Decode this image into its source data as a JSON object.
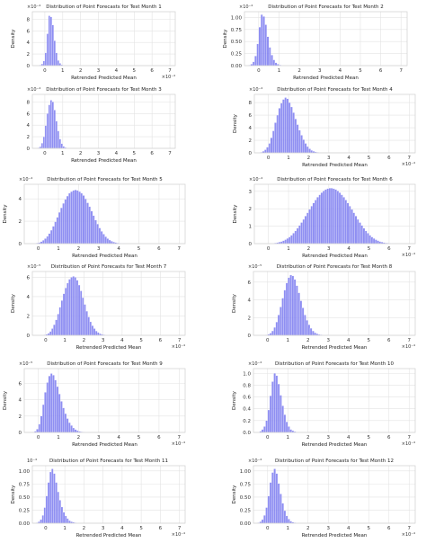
{
  "chart_data": [
    {
      "type": "bar",
      "title": "Distribution of Point Forecasts for Test Month 1",
      "xlabel": "Retrended Predicted Mean",
      "ylabel": "Density",
      "x_tick_labels": [
        "0",
        "1",
        "2",
        "3",
        "4",
        "5",
        "6",
        "7"
      ],
      "x_ticks": [
        0,
        1,
        2,
        3,
        4,
        5,
        6,
        7
      ],
      "x_exponent": "×10⁻⁴",
      "xlim": [
        -0.7,
        7.3
      ],
      "y_tick_labels": [
        "0",
        "2",
        "4",
        "6",
        "8"
      ],
      "y_ticks": [
        0,
        2,
        4,
        6,
        8
      ],
      "y_exponent": "×10⁻⁴",
      "ylim": [
        0,
        9.3
      ],
      "x": [
        -0.25,
        -0.15,
        -0.05,
        0.05,
        0.15,
        0.25,
        0.35,
        0.45,
        0.55,
        0.65,
        0.75,
        0.85,
        0.95,
        1.05
      ],
      "values": [
        0.1,
        0.3,
        0.8,
        2.2,
        5.5,
        8.6,
        8.4,
        7.0,
        4.3,
        2.2,
        0.9,
        0.4,
        0.15,
        0.05
      ],
      "bar_color": "#7b7bf0",
      "grid": true
    },
    {
      "type": "bar",
      "title": "Distribution of Point Forecasts for Test Month 2",
      "xlabel": "Retrended Predicted Mean",
      "ylabel": "Density",
      "x_tick_labels": [
        "0",
        "1",
        "2",
        "3",
        "4",
        "5",
        "6",
        "7"
      ],
      "x_ticks": [
        0,
        1,
        2,
        3,
        4,
        5,
        6,
        7
      ],
      "x_exponent": "",
      "xlim": [
        -0.7,
        7.3
      ],
      "y_tick_labels": [
        "0.00",
        "0.25",
        "0.50",
        "0.75",
        "1.00"
      ],
      "y_ticks": [
        0,
        0.25,
        0.5,
        0.75,
        1.0
      ],
      "y_exponent": "×10⁻⁴",
      "ylim": [
        0,
        1.12
      ],
      "x": [
        -0.45,
        -0.35,
        -0.25,
        -0.15,
        -0.05,
        0.05,
        0.15,
        0.25,
        0.35,
        0.45,
        0.55,
        0.65,
        0.75,
        0.85,
        0.95,
        1.05,
        1.15
      ],
      "values": [
        0.01,
        0.03,
        0.08,
        0.2,
        0.45,
        0.8,
        1.06,
        1.02,
        0.85,
        0.6,
        0.38,
        0.22,
        0.12,
        0.06,
        0.03,
        0.015,
        0.005
      ],
      "bar_color": "#7b7bf0",
      "grid": true
    },
    {
      "type": "bar",
      "title": "Distribution of Point Forecasts for Test Month 3",
      "xlabel": "Retrended Predicted Mean",
      "ylabel": "",
      "x_tick_labels": [
        "0",
        "1",
        "2",
        "3",
        "4",
        "5",
        "6",
        "7"
      ],
      "x_ticks": [
        0,
        1,
        2,
        3,
        4,
        5,
        6,
        7
      ],
      "x_exponent": "",
      "xlim": [
        -0.7,
        7.3
      ],
      "y_tick_labels": [
        "0",
        "2",
        "4",
        "6",
        "8"
      ],
      "y_ticks": [
        0,
        2,
        4,
        6,
        8
      ],
      "y_exponent": "×10⁻⁴",
      "ylim": [
        0,
        9.3
      ],
      "x": [
        -0.35,
        -0.25,
        -0.15,
        -0.05,
        0.05,
        0.15,
        0.25,
        0.35,
        0.45,
        0.55,
        0.65,
        0.75,
        0.85,
        0.95,
        1.05,
        1.15,
        1.25
      ],
      "values": [
        0.1,
        0.3,
        0.9,
        2.0,
        3.9,
        6.0,
        7.5,
        8.3,
        8.0,
        6.6,
        4.7,
        3.0,
        1.6,
        0.8,
        0.35,
        0.15,
        0.05
      ],
      "bar_color": "#7b7bf0",
      "grid": true
    },
    {
      "type": "bar",
      "title": "Distribution of Point Forecasts for Test Month 4",
      "xlabel": "Retrended Predicted Mean",
      "ylabel": "Density",
      "x_tick_labels": [
        "0",
        "1",
        "2",
        "3",
        "4",
        "5",
        "6",
        "7"
      ],
      "x_ticks": [
        0,
        1,
        2,
        3,
        4,
        5,
        6,
        7
      ],
      "x_exponent": "×10⁻⁴",
      "xlim": [
        -0.7,
        7.3
      ],
      "y_tick_labels": [
        "0",
        "2",
        "4",
        "6",
        "8"
      ],
      "y_ticks": [
        0,
        2,
        4,
        6,
        8
      ],
      "y_exponent": "×10⁻⁴",
      "ylim": [
        0,
        9.3
      ],
      "x": [
        -0.45,
        -0.35,
        -0.25,
        -0.15,
        -0.05,
        0.05,
        0.15,
        0.25,
        0.35,
        0.45,
        0.55,
        0.65,
        0.75,
        0.85,
        0.95,
        1.05,
        1.15,
        1.25,
        1.35,
        1.45,
        1.55,
        1.65,
        1.75,
        1.85,
        1.95,
        2.05,
        2.15,
        2.25,
        2.35,
        2.45,
        2.55
      ],
      "values": [
        0.05,
        0.1,
        0.25,
        0.5,
        0.9,
        1.5,
        2.4,
        3.5,
        4.8,
        6.0,
        7.1,
        7.9,
        8.5,
        8.8,
        8.6,
        8.0,
        7.3,
        6.4,
        5.4,
        4.5,
        3.6,
        2.8,
        2.1,
        1.5,
        1.0,
        0.65,
        0.4,
        0.25,
        0.15,
        0.08,
        0.04
      ],
      "bar_color": "#7b7bf0",
      "grid": true
    },
    {
      "type": "bar",
      "title": "Distribution of Point Forecasts for Test Month 5",
      "xlabel": "Retrended Predicted Mean",
      "ylabel": "Density",
      "x_tick_labels": [
        "0",
        "1",
        "2",
        "3",
        "4",
        "5",
        "6",
        "7"
      ],
      "x_ticks": [
        0,
        1,
        2,
        3,
        4,
        5,
        6,
        7
      ],
      "x_exponent": "",
      "xlim": [
        -0.7,
        7.3
      ],
      "y_tick_labels": [
        "0",
        "2",
        "4"
      ],
      "y_ticks": [
        0,
        2,
        4
      ],
      "y_exponent": "×10⁻⁴",
      "ylim": [
        0,
        5.3
      ],
      "x": [
        -0.15,
        -0.05,
        0.05,
        0.15,
        0.25,
        0.35,
        0.45,
        0.55,
        0.65,
        0.75,
        0.85,
        0.95,
        1.05,
        1.15,
        1.25,
        1.35,
        1.45,
        1.55,
        1.65,
        1.75,
        1.85,
        1.95,
        2.05,
        2.15,
        2.25,
        2.35,
        2.45,
        2.55,
        2.65,
        2.75,
        2.85,
        2.95,
        3.05,
        3.15,
        3.25,
        3.35,
        3.45,
        3.55,
        3.65,
        3.75,
        3.85,
        3.95,
        4.05,
        4.15,
        4.25
      ],
      "values": [
        0.03,
        0.06,
        0.1,
        0.18,
        0.3,
        0.45,
        0.65,
        0.9,
        1.2,
        1.55,
        1.95,
        2.35,
        2.8,
        3.2,
        3.6,
        3.95,
        4.25,
        4.5,
        4.65,
        4.75,
        4.8,
        4.75,
        4.65,
        4.5,
        4.3,
        4.0,
        3.65,
        3.3,
        2.9,
        2.5,
        2.1,
        1.75,
        1.4,
        1.1,
        0.85,
        0.62,
        0.45,
        0.32,
        0.22,
        0.15,
        0.1,
        0.06,
        0.04,
        0.02,
        0.01
      ],
      "bar_color": "#7b7bf0",
      "grid": true
    },
    {
      "type": "bar",
      "title": "Distribution of Point Forecasts for Test Month 6",
      "xlabel": "Retrended Predicted Mean",
      "ylabel": "Density",
      "x_tick_labels": [
        "0",
        "1",
        "2",
        "3",
        "4",
        "5",
        "6",
        "7"
      ],
      "x_ticks": [
        0,
        1,
        2,
        3,
        4,
        5,
        6,
        7
      ],
      "x_exponent": "×10⁻⁴",
      "xlim": [
        -0.7,
        7.3
      ],
      "y_tick_labels": [
        "0",
        "1",
        "2",
        "3"
      ],
      "y_ticks": [
        0,
        1,
        2,
        3
      ],
      "y_exponent": "×10⁻⁴",
      "ylim": [
        0,
        3.4
      ],
      "x": [
        0.25,
        0.35,
        0.45,
        0.55,
        0.65,
        0.75,
        0.85,
        0.95,
        1.05,
        1.15,
        1.25,
        1.35,
        1.45,
        1.55,
        1.65,
        1.75,
        1.85,
        1.95,
        2.05,
        2.15,
        2.25,
        2.35,
        2.45,
        2.55,
        2.65,
        2.75,
        2.85,
        2.95,
        3.05,
        3.15,
        3.25,
        3.35,
        3.45,
        3.55,
        3.65,
        3.75,
        3.85,
        3.95,
        4.05,
        4.15,
        4.25,
        4.35,
        4.45,
        4.55,
        4.65,
        4.75,
        4.85,
        4.95,
        5.05,
        5.15,
        5.25,
        5.35,
        5.45,
        5.55,
        5.65,
        5.75,
        5.85,
        5.95,
        6.05,
        6.15,
        6.25
      ],
      "values": [
        0.02,
        0.04,
        0.06,
        0.09,
        0.12,
        0.17,
        0.23,
        0.3,
        0.38,
        0.48,
        0.6,
        0.73,
        0.88,
        1.04,
        1.21,
        1.39,
        1.58,
        1.77,
        1.96,
        2.15,
        2.33,
        2.5,
        2.66,
        2.8,
        2.92,
        3.02,
        3.1,
        3.15,
        3.18,
        3.18,
        3.15,
        3.1,
        3.02,
        2.92,
        2.8,
        2.66,
        2.5,
        2.33,
        2.15,
        1.96,
        1.77,
        1.58,
        1.39,
        1.21,
        1.04,
        0.88,
        0.73,
        0.6,
        0.48,
        0.38,
        0.3,
        0.23,
        0.17,
        0.12,
        0.09,
        0.06,
        0.04,
        0.03,
        0.02,
        0.01,
        0.01
      ],
      "bar_color": "#7b7bf0",
      "grid": true
    },
    {
      "type": "bar",
      "title": "Distribution of Point Forecasts for Test Month 7",
      "xlabel": "Retrended Predicted Mean",
      "ylabel": "Density",
      "x_tick_labels": [
        "0",
        "1",
        "2",
        "3",
        "4",
        "5",
        "6",
        "7"
      ],
      "x_ticks": [
        0,
        1,
        2,
        3,
        4,
        5,
        6,
        7
      ],
      "x_exponent": "×10⁻⁴",
      "xlim": [
        -0.7,
        7.3
      ],
      "y_tick_labels": [
        "0",
        "2",
        "4",
        "6"
      ],
      "y_ticks": [
        0,
        2,
        4,
        6
      ],
      "y_exponent": "×10⁻⁵",
      "ylim": [
        0,
        6.6
      ],
      "x": [
        -0.05,
        0.05,
        0.15,
        0.25,
        0.35,
        0.45,
        0.55,
        0.65,
        0.75,
        0.85,
        0.95,
        1.05,
        1.15,
        1.25,
        1.35,
        1.45,
        1.55,
        1.65,
        1.75,
        1.85,
        1.95,
        2.05,
        2.15,
        2.25,
        2.35,
        2.45,
        2.55,
        2.65,
        2.75,
        2.85,
        2.95,
        3.05,
        3.15,
        3.25,
        3.35
      ],
      "values": [
        0.05,
        0.1,
        0.2,
        0.4,
        0.7,
        1.1,
        1.6,
        2.2,
        2.9,
        3.6,
        4.3,
        4.9,
        5.4,
        5.8,
        6.0,
        6.1,
        6.0,
        5.7,
        5.2,
        4.6,
        3.9,
        3.2,
        2.5,
        1.9,
        1.4,
        1.0,
        0.7,
        0.45,
        0.3,
        0.18,
        0.1,
        0.06,
        0.03,
        0.02,
        0.01
      ],
      "bar_color": "#7b7bf0",
      "grid": true
    },
    {
      "type": "bar",
      "title": "Distribution of Point Forecasts for Test Month 8",
      "xlabel": "Retrended Predicted Mean",
      "ylabel": "Density",
      "x_tick_labels": [
        "0",
        "1",
        "2",
        "3",
        "4",
        "5",
        "6",
        "7"
      ],
      "x_ticks": [
        0,
        1,
        2,
        3,
        4,
        5,
        6,
        7
      ],
      "x_exponent": "×10⁻⁴",
      "xlim": [
        -0.7,
        7.3
      ],
      "y_tick_labels": [
        "0",
        "2",
        "4",
        "6"
      ],
      "y_ticks": [
        0,
        2,
        4,
        6
      ],
      "y_exponent": "×10⁻⁵",
      "ylim": [
        0,
        7.2
      ],
      "x": [
        -0.05,
        0.05,
        0.15,
        0.25,
        0.35,
        0.45,
        0.55,
        0.65,
        0.75,
        0.85,
        0.95,
        1.05,
        1.15,
        1.25,
        1.35,
        1.45,
        1.55,
        1.65,
        1.75,
        1.85,
        1.95,
        2.05,
        2.15,
        2.25,
        2.35,
        2.45,
        2.55,
        2.65,
        2.75,
        2.85,
        2.95,
        3.05
      ],
      "values": [
        0.05,
        0.12,
        0.25,
        0.5,
        0.9,
        1.5,
        2.3,
        3.2,
        4.2,
        5.1,
        5.9,
        6.5,
        6.8,
        6.7,
        6.3,
        5.6,
        4.8,
        3.9,
        3.1,
        2.3,
        1.7,
        1.2,
        0.8,
        0.5,
        0.3,
        0.18,
        0.1,
        0.06,
        0.03,
        0.02,
        0.01,
        0.01
      ],
      "bar_color": "#7b7bf0",
      "grid": true
    },
    {
      "type": "bar",
      "title": "Distribution of Point Forecasts for Test Month 9",
      "xlabel": "Retrended Predicted Mean",
      "ylabel": "Density",
      "x_tick_labels": [
        "0",
        "1",
        "2",
        "3",
        "4",
        "5",
        "6",
        "7"
      ],
      "x_ticks": [
        0,
        1,
        2,
        3,
        4,
        5,
        6,
        7
      ],
      "x_exponent": "×10⁻⁴",
      "xlim": [
        -0.7,
        7.3
      ],
      "y_tick_labels": [
        "0",
        "2",
        "4",
        "6"
      ],
      "y_ticks": [
        0,
        2,
        4,
        6
      ],
      "y_exponent": "×10⁻⁵",
      "ylim": [
        0,
        7.8
      ],
      "x": [
        -0.25,
        -0.15,
        -0.05,
        0.05,
        0.15,
        0.25,
        0.35,
        0.45,
        0.55,
        0.65,
        0.75,
        0.85,
        0.95,
        1.05,
        1.15,
        1.25,
        1.35,
        1.45,
        1.55,
        1.65,
        1.75,
        1.85,
        1.95,
        2.05,
        2.15,
        2.25,
        2.35,
        2.45,
        2.55
      ],
      "values": [
        0.05,
        0.15,
        0.4,
        1.0,
        2.0,
        3.4,
        4.9,
        6.1,
        6.9,
        7.2,
        7.0,
        6.4,
        5.6,
        4.7,
        3.8,
        3.0,
        2.3,
        1.7,
        1.2,
        0.85,
        0.55,
        0.35,
        0.22,
        0.13,
        0.08,
        0.05,
        0.03,
        0.02,
        0.01
      ],
      "bar_color": "#7b7bf0",
      "grid": true
    },
    {
      "type": "bar",
      "title": "Distribution of Point Forecasts for Test Month 10",
      "xlabel": "Retrended Predicted Mean",
      "ylabel": "Density",
      "x_tick_labels": [
        "0",
        "1",
        "2",
        "3",
        "4",
        "5",
        "6",
        "7"
      ],
      "x_ticks": [
        0,
        1,
        2,
        3,
        4,
        5,
        6,
        7
      ],
      "x_exponent": "×10⁻⁴",
      "xlim": [
        -0.7,
        7.3
      ],
      "y_tick_labels": [
        "0.0",
        "0.2",
        "0.4",
        "0.6",
        "0.8",
        "1.0"
      ],
      "y_ticks": [
        0,
        0.2,
        0.4,
        0.6,
        0.8,
        1.0
      ],
      "y_exponent": "×10⁻⁴",
      "ylim": [
        0,
        1.08
      ],
      "x": [
        -0.35,
        -0.25,
        -0.15,
        -0.05,
        0.05,
        0.15,
        0.25,
        0.35,
        0.45,
        0.55,
        0.65,
        0.75,
        0.85,
        0.95,
        1.05,
        1.15,
        1.25,
        1.35,
        1.45
      ],
      "values": [
        0.02,
        0.05,
        0.1,
        0.2,
        0.38,
        0.62,
        0.86,
        1.0,
        0.96,
        0.82,
        0.63,
        0.45,
        0.3,
        0.18,
        0.1,
        0.05,
        0.03,
        0.015,
        0.005
      ],
      "bar_color": "#7b7bf0",
      "grid": true
    },
    {
      "type": "bar",
      "title": "Distribution of Point Forecasts for Test Month 11",
      "xlabel": "Retrended Predicted Mean",
      "ylabel": "Density",
      "x_tick_labels": [
        "0",
        "1",
        "2",
        "3",
        "4",
        "5",
        "6",
        "7"
      ],
      "x_ticks": [
        0,
        1,
        2,
        3,
        4,
        5,
        6,
        7
      ],
      "x_exponent": "×10⁻⁴",
      "xlim": [
        -0.7,
        7.3
      ],
      "y_tick_labels": [
        "0.00",
        "0.25",
        "0.50",
        "0.75",
        "1.00"
      ],
      "y_ticks": [
        0,
        0.25,
        0.5,
        0.75,
        1.0
      ],
      "y_exponent": "10⁻⁴",
      "ylim": [
        0,
        1.1
      ],
      "x": [
        -0.45,
        -0.35,
        -0.25,
        -0.15,
        -0.05,
        0.05,
        0.15,
        0.25,
        0.35,
        0.45,
        0.55,
        0.65,
        0.75,
        0.85,
        0.95,
        1.05,
        1.15,
        1.25,
        1.35,
        1.45,
        1.55,
        1.65
      ],
      "values": [
        0.01,
        0.03,
        0.07,
        0.15,
        0.3,
        0.52,
        0.78,
        0.98,
        1.04,
        0.95,
        0.78,
        0.6,
        0.44,
        0.31,
        0.21,
        0.14,
        0.09,
        0.05,
        0.03,
        0.02,
        0.01,
        0.005
      ],
      "bar_color": "#7b7bf0",
      "grid": true
    },
    {
      "type": "bar",
      "title": "Distribution of Point Forecasts for Test Month 12",
      "xlabel": "Retrended Predicted Mean",
      "ylabel": "Density",
      "x_tick_labels": [
        "0",
        "1",
        "2",
        "3",
        "4",
        "5",
        "6",
        "7"
      ],
      "x_ticks": [
        0,
        1,
        2,
        3,
        4,
        5,
        6,
        7
      ],
      "x_exponent": "×10⁻⁴",
      "xlim": [
        -0.7,
        7.3
      ],
      "y_tick_labels": [
        "0.00",
        "0.25",
        "0.50",
        "0.75",
        "1.00"
      ],
      "y_ticks": [
        0,
        0.25,
        0.5,
        0.75,
        1.0
      ],
      "y_exponent": "×10⁻⁴",
      "ylim": [
        0,
        1.1
      ],
      "x": [
        -0.45,
        -0.35,
        -0.25,
        -0.15,
        -0.05,
        0.05,
        0.15,
        0.25,
        0.35,
        0.45,
        0.55,
        0.65,
        0.75,
        0.85,
        0.95,
        1.05,
        1.15,
        1.25,
        1.35,
        1.45
      ],
      "values": [
        0.01,
        0.03,
        0.07,
        0.15,
        0.3,
        0.52,
        0.78,
        0.97,
        1.04,
        0.95,
        0.76,
        0.56,
        0.38,
        0.24,
        0.14,
        0.08,
        0.04,
        0.02,
        0.01,
        0.005
      ],
      "bar_color": "#7b7bf0",
      "grid": true
    }
  ]
}
